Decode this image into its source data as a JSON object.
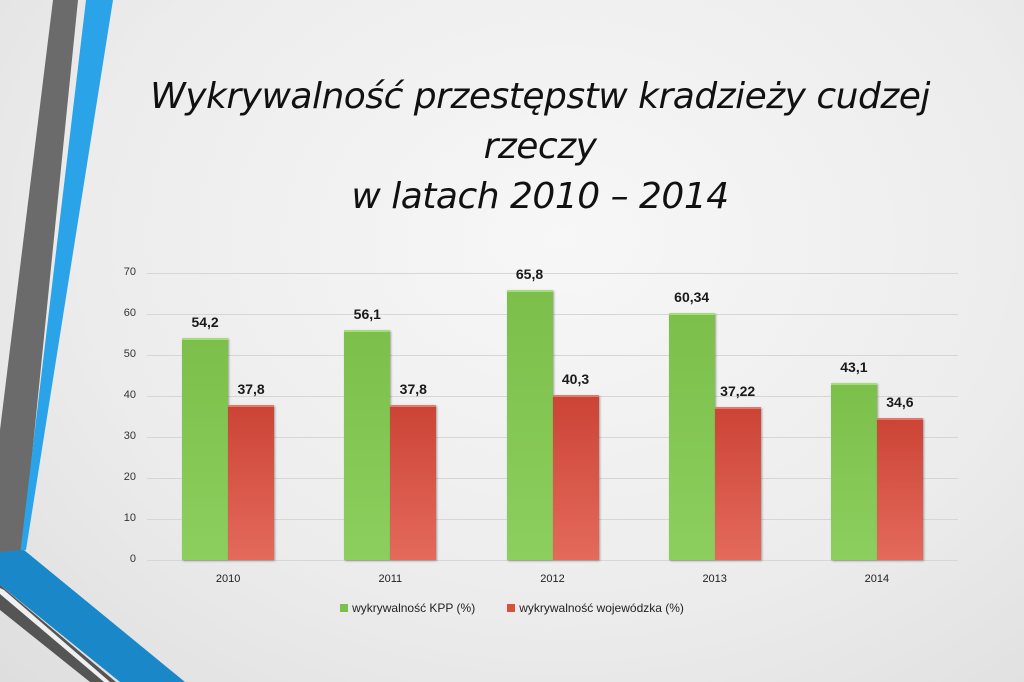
{
  "slide": {
    "title_line1": "Wykrywalność przestępstw kradzieży cudzej rzeczy",
    "title_line2": "w latach 2010 – 2014",
    "colors": {
      "stripe_gray": "#6b6b6b",
      "stripe_blue": "#2aa3e8",
      "stripe_blue_dark": "#1a88c8"
    }
  },
  "chart_data": {
    "type": "bar",
    "title": "Wykrywalność przestępstw kradzieży cudzej rzeczy w latach 2010 – 2014",
    "xlabel": "",
    "ylabel": "",
    "ylim": [
      0,
      70
    ],
    "yticks": [
      "0",
      "10",
      "20",
      "30",
      "40",
      "50",
      "60",
      "70"
    ],
    "categories": [
      "2010",
      "2011",
      "2012",
      "2013",
      "2014"
    ],
    "series": [
      {
        "name": "wykrywalność KPP (%)",
        "color": "#7cbf4a",
        "values": [
          54.2,
          56.1,
          65.8,
          60.34,
          43.1
        ],
        "labels": [
          "54,2",
          "56,1",
          "65,8",
          "60,34",
          "43,1"
        ]
      },
      {
        "name": "wykrywalność wojewódzka (%)",
        "color": "#d9503f",
        "values": [
          37.8,
          37.8,
          40.3,
          37.22,
          34.6
        ],
        "labels": [
          "37,8",
          "37,8",
          "40,3",
          "37,22",
          "34,6"
        ]
      }
    ],
    "grid": true,
    "legend_position": "bottom"
  }
}
